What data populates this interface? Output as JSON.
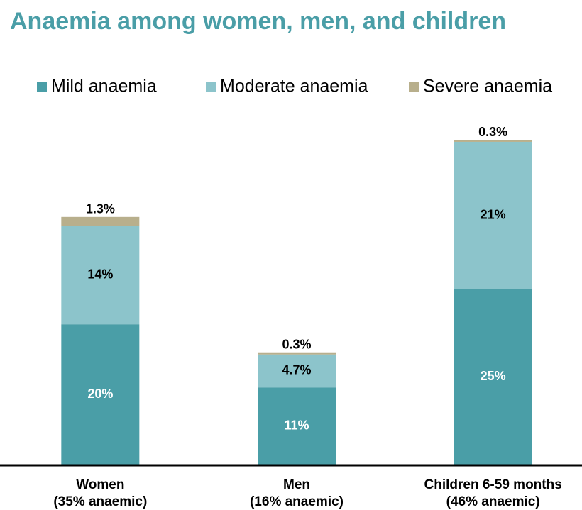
{
  "chart_data": {
    "type": "stacked_bar",
    "title": "Anaemia among women, men, and children",
    "categories": [
      [
        "Women",
        "(35% anaemic)"
      ],
      [
        "Men",
        "(16% anaemic)"
      ],
      [
        "Children 6-59 months",
        "(46% anaemic)"
      ]
    ],
    "series": [
      {
        "name": "Mild anaemia",
        "color": "#4a9ea7",
        "values": [
          20,
          11,
          25
        ],
        "value_labels": [
          "20%",
          "11%",
          "25%"
        ]
      },
      {
        "name": "Moderate anaemia",
        "color": "#8cc4cb",
        "values": [
          14,
          4.7,
          21
        ],
        "value_labels": [
          "14%",
          "4.7%",
          "21%"
        ]
      },
      {
        "name": "Severe anaemia",
        "color": "#b8af8c",
        "values": [
          1.3,
          0.3,
          0.3
        ],
        "value_labels": [
          "1.3%",
          "0.3%",
          "0.3%"
        ]
      }
    ],
    "legend": "top"
  }
}
